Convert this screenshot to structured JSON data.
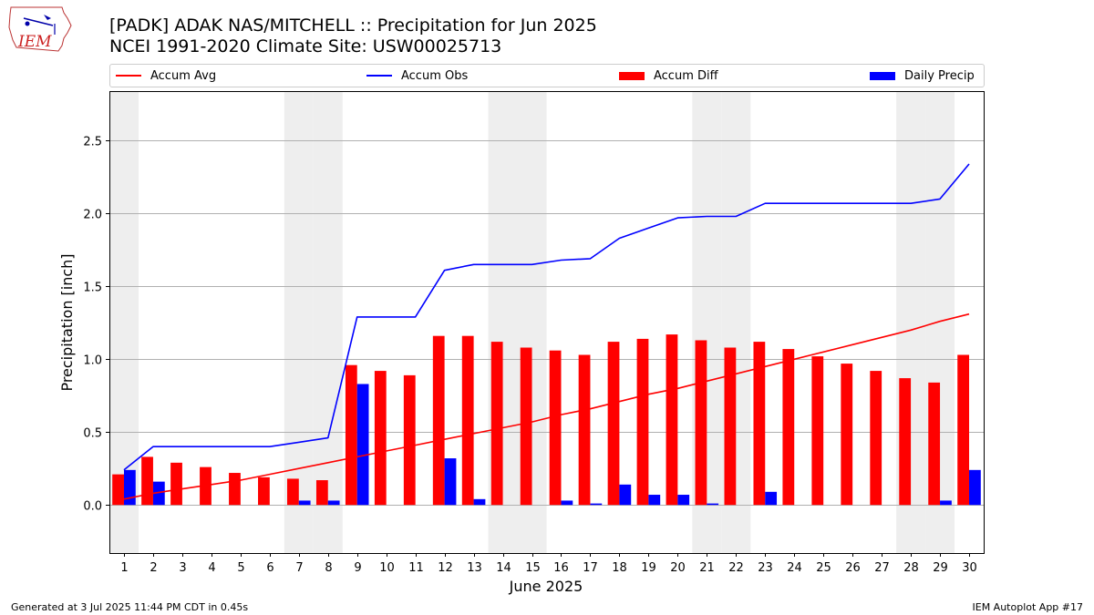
{
  "header": {
    "title_line1": "[PADK] ADAK NAS/MITCHELL :: Precipitation for Jun 2025",
    "title_line2": "NCEI 1991-2020 Climate Site: USW00025713",
    "logo_text": "IEM"
  },
  "footer": {
    "left": "Generated at 3 Jul 2025 11:44 PM CDT in 0.45s",
    "right": "IEM Autoplot App #17"
  },
  "legend": {
    "items": [
      {
        "label": "Accum Avg",
        "color": "#ff0000",
        "kind": "line"
      },
      {
        "label": "Accum Obs",
        "color": "#0000ff",
        "kind": "line"
      },
      {
        "label": "Accum Diff",
        "color": "#ff0000",
        "kind": "bar"
      },
      {
        "label": "Daily Precip",
        "color": "#0000ff",
        "kind": "bar"
      }
    ],
    "placement": "top"
  },
  "chart_data": {
    "type": "bar",
    "xlabel": "June 2025",
    "ylabel": "Precipitation [inch]",
    "ylim": [
      -0.33,
      2.84
    ],
    "yticks": [
      0.0,
      0.5,
      1.0,
      1.5,
      2.0,
      2.5
    ],
    "ytick_labels": [
      "0.0",
      "0.5",
      "1.0",
      "1.5",
      "2.0",
      "2.5"
    ],
    "grid": "horizontal",
    "x": [
      1,
      2,
      3,
      4,
      5,
      6,
      7,
      8,
      9,
      10,
      11,
      12,
      13,
      14,
      15,
      16,
      17,
      18,
      19,
      20,
      21,
      22,
      23,
      24,
      25,
      26,
      27,
      28,
      29,
      30
    ],
    "weekend_shading_days": [
      1,
      7,
      8,
      14,
      15,
      21,
      22,
      28,
      29
    ],
    "weekend_shading_color": "#eeeeee",
    "series": [
      {
        "name": "Accum Avg",
        "kind": "line",
        "color": "#ff0000",
        "values": [
          0.04,
          0.08,
          0.11,
          0.14,
          0.17,
          0.21,
          0.25,
          0.29,
          0.33,
          0.37,
          0.41,
          0.45,
          0.49,
          0.53,
          0.57,
          0.62,
          0.66,
          0.71,
          0.76,
          0.8,
          0.85,
          0.9,
          0.95,
          1.0,
          1.05,
          1.1,
          1.15,
          1.2,
          1.26,
          1.31
        ]
      },
      {
        "name": "Accum Obs",
        "kind": "line",
        "color": "#0000ff",
        "values": [
          0.24,
          0.4,
          0.4,
          0.4,
          0.4,
          0.4,
          0.43,
          0.46,
          1.29,
          1.29,
          1.29,
          1.61,
          1.65,
          1.65,
          1.65,
          1.68,
          1.69,
          1.83,
          1.9,
          1.97,
          1.98,
          1.98,
          2.07,
          2.07,
          2.07,
          2.07,
          2.07,
          2.07,
          2.1,
          2.34
        ]
      },
      {
        "name": "Accum Diff",
        "kind": "bar",
        "color": "#ff0000",
        "values": [
          0.21,
          0.33,
          0.29,
          0.26,
          0.22,
          0.19,
          0.18,
          0.17,
          0.96,
          0.92,
          0.89,
          1.16,
          1.16,
          1.12,
          1.08,
          1.06,
          1.03,
          1.12,
          1.14,
          1.17,
          1.13,
          1.08,
          1.12,
          1.07,
          1.02,
          0.97,
          0.92,
          0.87,
          0.84,
          1.03
        ]
      },
      {
        "name": "Daily Precip",
        "kind": "bar",
        "color": "#0000ff",
        "values": [
          0.24,
          0.16,
          0,
          0,
          0,
          0,
          0.03,
          0.03,
          0.83,
          0,
          0,
          0.32,
          0.04,
          0,
          0,
          0.03,
          0.01,
          0.14,
          0.07,
          0.07,
          0.01,
          0,
          0.09,
          0,
          0,
          0,
          0,
          0,
          0.03,
          0.24
        ]
      }
    ]
  }
}
